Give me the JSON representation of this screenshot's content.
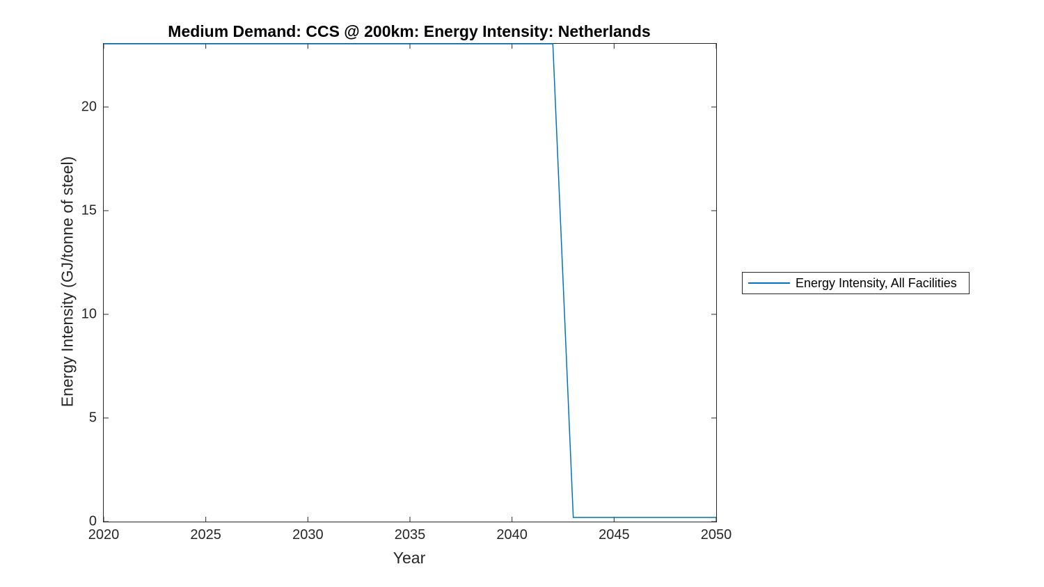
{
  "chart_data": {
    "type": "line",
    "title": "Medium Demand: CCS @ 200km: Energy Intensity: Netherlands",
    "xlabel": "Year",
    "ylabel": "Energy Intensity (GJ/tonne of steel)",
    "xlim": [
      2020,
      2050
    ],
    "ylim": [
      0,
      23.05
    ],
    "x_ticks": [
      "2020",
      "2025",
      "2030",
      "2035",
      "2040",
      "2045",
      "2050"
    ],
    "x_tick_values": [
      2020,
      2025,
      2030,
      2035,
      2040,
      2045,
      2050
    ],
    "y_ticks": [
      "0",
      "5",
      "10",
      "15",
      "20"
    ],
    "y_tick_values": [
      0,
      5,
      10,
      15,
      20
    ],
    "grid": false,
    "box": true,
    "tick_direction": "in",
    "legend_position": "outside-right",
    "series": [
      {
        "name": "Energy Intensity, All Facilities",
        "color": "#0072BD",
        "x": [
          2020,
          2042,
          2043,
          2050
        ],
        "y": [
          23.05,
          23.05,
          0.2,
          0.2
        ]
      }
    ]
  },
  "colors": {
    "background": "#ffffff",
    "axis": "#262626",
    "title_text": "#000000",
    "legend_border": "#262626",
    "line": "#0072BD"
  }
}
